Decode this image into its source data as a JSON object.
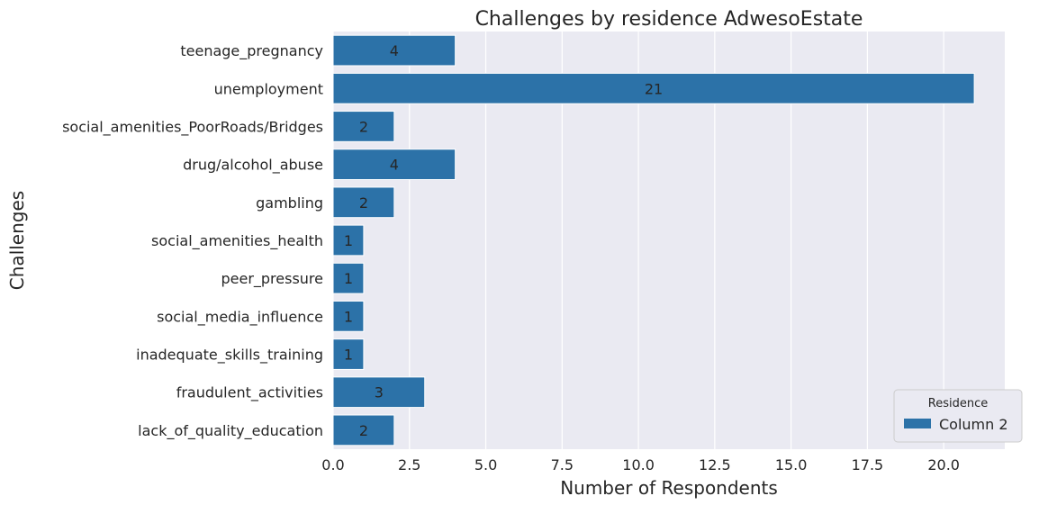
{
  "chart_data": {
    "type": "bar",
    "orientation": "horizontal",
    "title": "Challenges by residence AdwesoEstate",
    "xlabel": "Number of Respondents",
    "ylabel": "Challenges",
    "xlim": [
      0,
      22
    ],
    "xticks": [
      0,
      2.5,
      5,
      7.5,
      10,
      12.5,
      15,
      17.5,
      20
    ],
    "xtick_labels": [
      "0.0",
      "2.5",
      "5.0",
      "7.5",
      "10.0",
      "12.5",
      "15.0",
      "17.5",
      "20.0"
    ],
    "grid": true,
    "categories": [
      "teenage_pregnancy",
      "unemployment",
      "social_amenities_PoorRoads/Bridges",
      "drug/alcohol_abuse",
      "gambling",
      "social_amenities_health",
      "peer_pressure",
      "social_media_influence",
      "inadequate_skills_training",
      "fraudulent_activities",
      "lack_of_quality_education"
    ],
    "series": [
      {
        "name": "Column 2",
        "color": "#2c72a8",
        "values": [
          4,
          21,
          2,
          4,
          2,
          1,
          1,
          1,
          1,
          3,
          2
        ]
      }
    ],
    "legend": {
      "title": "Residence",
      "placement": "lower-right"
    },
    "background_color": "#eaeaf2"
  }
}
